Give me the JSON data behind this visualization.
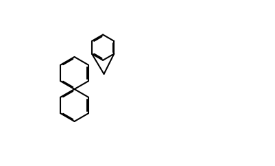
{
  "background_color": "#ffffff",
  "line_color": "#000000",
  "line_width": 1.5,
  "font_size": 9,
  "figsize": [
    4.02,
    2.42
  ],
  "dpi": 100
}
